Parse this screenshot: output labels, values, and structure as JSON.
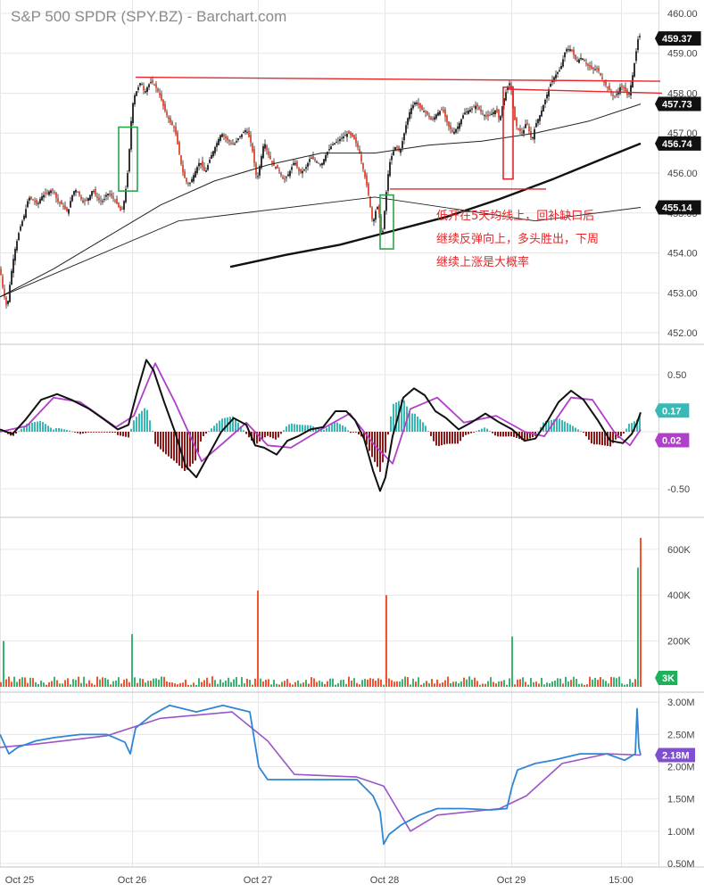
{
  "header": {
    "title": "S&P 500 SPDR (SPY.BZ) - Barchart.com"
  },
  "annotation": {
    "lines": [
      "低开在5天均线上，回补缺口后",
      "继续反弹向上，多头胜出，下周",
      "继续上涨是大概率"
    ]
  },
  "x_axis": {
    "ticks": [
      "Oct 25",
      "Oct 26",
      "Oct 27",
      "Oct 28",
      "Oct 29",
      "15:00"
    ]
  },
  "colors": {
    "up": "#3aa757",
    "down": "#e8452c",
    "annotation": "#e8262a",
    "macd_line": "#111111",
    "macd_signal": "#b03fc9",
    "hist_pos": "#38b9b5",
    "hist_neg": "#8b1a1a",
    "volume_up": "#3cb371",
    "volume_down": "#f4542f",
    "obv": "#2f86d6",
    "obv_avg": "#9a55c9",
    "box_green": "#2aa54a",
    "box_red": "#e0282c"
  },
  "chart_data": [
    {
      "type": "candlestick",
      "name": "price",
      "ylim": [
        451.8,
        460.2
      ],
      "y_ticks": [
        "452.00",
        "453.00",
        "454.00",
        "455.00",
        "456.00",
        "457.00",
        "458.00",
        "459.00",
        "460.00"
      ],
      "last_price_labels": [
        "459.37",
        "457.73",
        "456.74",
        "455.14"
      ],
      "overlays": [
        "moving average (thin black)",
        "moving average (thick black)",
        "horizontal support/resistance lines (red)"
      ],
      "price_path": [
        [
          0,
          453.6
        ],
        [
          4,
          453.0
        ],
        [
          8,
          452.6
        ],
        [
          12,
          453.4
        ],
        [
          16,
          454.0
        ],
        [
          22,
          454.6
        ],
        [
          28,
          455.0
        ],
        [
          32,
          455.4
        ],
        [
          38,
          455.3
        ],
        [
          42,
          455.2
        ],
        [
          46,
          455.4
        ],
        [
          52,
          455.5
        ],
        [
          60,
          455.6
        ],
        [
          64,
          455.3
        ],
        [
          70,
          455.2
        ],
        [
          76,
          455.0
        ],
        [
          80,
          455.4
        ],
        [
          84,
          455.6
        ],
        [
          88,
          455.5
        ],
        [
          92,
          455.3
        ],
        [
          96,
          455.3
        ],
        [
          100,
          455.4
        ],
        [
          104,
          455.6
        ],
        [
          108,
          455.4
        ],
        [
          112,
          455.3
        ],
        [
          116,
          455.3
        ],
        [
          120,
          455.5
        ],
        [
          126,
          455.4
        ],
        [
          132,
          455.2
        ],
        [
          136,
          455.0
        ],
        [
          140,
          455.4
        ],
        [
          144,
          456.2
        ],
        [
          146,
          457.0
        ],
        [
          148,
          457.6
        ],
        [
          150,
          457.9
        ],
        [
          154,
          458.1
        ],
        [
          158,
          458.3
        ],
        [
          162,
          458.0
        ],
        [
          166,
          458.2
        ],
        [
          170,
          458.3
        ],
        [
          176,
          458.1
        ],
        [
          180,
          457.9
        ],
        [
          184,
          457.6
        ],
        [
          190,
          457.3
        ],
        [
          196,
          457.1
        ],
        [
          200,
          456.6
        ],
        [
          204,
          456.1
        ],
        [
          208,
          455.8
        ],
        [
          212,
          455.7
        ],
        [
          218,
          456.0
        ],
        [
          224,
          456.3
        ],
        [
          230,
          456.0
        ],
        [
          236,
          456.4
        ],
        [
          242,
          456.7
        ],
        [
          248,
          457.0
        ],
        [
          256,
          456.8
        ],
        [
          262,
          456.7
        ],
        [
          268,
          456.9
        ],
        [
          272,
          457.0
        ],
        [
          276,
          457.1
        ],
        [
          282,
          456.7
        ],
        [
          288,
          455.8
        ],
        [
          292,
          456.3
        ],
        [
          296,
          456.8
        ],
        [
          300,
          456.5
        ],
        [
          306,
          456.2
        ],
        [
          312,
          456.1
        ],
        [
          318,
          455.8
        ],
        [
          324,
          456.0
        ],
        [
          330,
          456.3
        ],
        [
          336,
          456.0
        ],
        [
          342,
          456.1
        ],
        [
          348,
          456.4
        ],
        [
          354,
          456.3
        ],
        [
          360,
          456.2
        ],
        [
          366,
          456.5
        ],
        [
          372,
          456.7
        ],
        [
          378,
          456.8
        ],
        [
          384,
          456.9
        ],
        [
          390,
          457.0
        ],
        [
          396,
          456.9
        ],
        [
          402,
          456.6
        ],
        [
          408,
          456.0
        ],
        [
          412,
          455.6
        ],
        [
          416,
          455.0
        ],
        [
          418,
          454.7
        ],
        [
          420,
          455.0
        ],
        [
          424,
          455.2
        ],
        [
          428,
          454.3
        ],
        [
          432,
          455.3
        ],
        [
          436,
          456.2
        ],
        [
          440,
          456.5
        ],
        [
          444,
          456.7
        ],
        [
          448,
          456.5
        ],
        [
          452,
          456.9
        ],
        [
          456,
          457.3
        ],
        [
          460,
          457.6
        ],
        [
          466,
          457.8
        ],
        [
          472,
          457.6
        ],
        [
          478,
          457.5
        ],
        [
          484,
          457.3
        ],
        [
          490,
          457.5
        ],
        [
          496,
          457.6
        ],
        [
          502,
          457.2
        ],
        [
          508,
          457.0
        ],
        [
          514,
          457.2
        ],
        [
          520,
          457.5
        ],
        [
          528,
          457.6
        ],
        [
          534,
          457.7
        ],
        [
          540,
          457.5
        ],
        [
          546,
          457.4
        ],
        [
          552,
          457.5
        ],
        [
          556,
          457.6
        ],
        [
          560,
          457.3
        ],
        [
          564,
          457.8
        ],
        [
          568,
          458.1
        ],
        [
          572,
          458.3
        ],
        [
          576,
          457.4
        ],
        [
          580,
          457.1
        ],
        [
          586,
          457.0
        ],
        [
          590,
          457.3
        ],
        [
          596,
          456.8
        ],
        [
          600,
          457.2
        ],
        [
          606,
          457.5
        ],
        [
          612,
          457.9
        ],
        [
          618,
          458.3
        ],
        [
          624,
          458.5
        ],
        [
          628,
          458.6
        ],
        [
          634,
          459.1
        ],
        [
          640,
          459.1
        ],
        [
          646,
          458.8
        ],
        [
          652,
          458.9
        ],
        [
          658,
          458.7
        ],
        [
          664,
          458.6
        ],
        [
          670,
          458.6
        ],
        [
          676,
          458.3
        ],
        [
          682,
          458.1
        ],
        [
          688,
          457.9
        ],
        [
          692,
          458.0
        ],
        [
          696,
          458.2
        ],
        [
          700,
          458.1
        ],
        [
          704,
          457.9
        ],
        [
          708,
          458.3
        ],
        [
          712,
          458.9
        ],
        [
          716,
          459.5
        ],
        [
          718,
          459.37
        ]
      ],
      "ma_thin": [
        [
          0,
          452.9
        ],
        [
          60,
          453.6
        ],
        [
          120,
          454.4
        ],
        [
          180,
          455.2
        ],
        [
          240,
          455.8
        ],
        [
          300,
          456.2
        ],
        [
          360,
          456.5
        ],
        [
          420,
          456.5
        ],
        [
          480,
          456.7
        ],
        [
          540,
          456.8
        ],
        [
          600,
          457.0
        ],
        [
          660,
          457.3
        ],
        [
          718,
          457.73
        ]
      ],
      "ma_thick": [
        [
          258,
          453.65
        ],
        [
          320,
          453.95
        ],
        [
          380,
          454.2
        ],
        [
          440,
          454.55
        ],
        [
          500,
          454.9
        ],
        [
          560,
          455.35
        ],
        [
          620,
          455.85
        ],
        [
          680,
          456.4
        ],
        [
          718,
          456.74
        ]
      ],
      "ma_lower": [
        [
          0,
          452.9
        ],
        [
          200,
          454.8
        ],
        [
          420,
          455.4
        ],
        [
          600,
          454.8
        ],
        [
          718,
          455.14
        ]
      ],
      "red_lines": [
        [
          [
            152,
            458.4
          ],
          [
            740,
            458.3
          ]
        ],
        [
          [
            570,
            458.1
          ],
          [
            742,
            458.0
          ]
        ],
        [
          [
            437,
            455.6
          ],
          [
            612,
            455.6
          ]
        ]
      ],
      "boxes": [
        {
          "color": "green",
          "x0": 133,
          "x1": 154,
          "y_top": 457.15,
          "y_bottom": 455.55
        },
        {
          "color": "green",
          "x0": 426,
          "x1": 441,
          "y_top": 455.45,
          "y_bottom": 454.1
        },
        {
          "color": "red",
          "x0": 564,
          "x1": 575,
          "y_top": 458.15,
          "y_bottom": 455.85
        }
      ]
    },
    {
      "type": "line",
      "name": "macd",
      "ylim": [
        -0.72,
        0.72
      ],
      "y_ticks": [
        "0.50",
        "-0.50"
      ],
      "last_value_labels": [
        "0.17",
        "0.02"
      ],
      "macd": [
        [
          0,
          0.02
        ],
        [
          14,
          -0.02
        ],
        [
          28,
          0.1
        ],
        [
          46,
          0.28
        ],
        [
          64,
          0.33
        ],
        [
          80,
          0.28
        ],
        [
          100,
          0.2
        ],
        [
          118,
          0.1
        ],
        [
          132,
          0.02
        ],
        [
          144,
          0.06
        ],
        [
          154,
          0.36
        ],
        [
          164,
          0.63
        ],
        [
          172,
          0.54
        ],
        [
          184,
          0.26
        ],
        [
          196,
          0.0
        ],
        [
          208,
          -0.3
        ],
        [
          220,
          -0.4
        ],
        [
          234,
          -0.2
        ],
        [
          248,
          0.0
        ],
        [
          262,
          0.12
        ],
        [
          276,
          0.06
        ],
        [
          286,
          -0.12
        ],
        [
          296,
          -0.14
        ],
        [
          310,
          -0.2
        ],
        [
          322,
          -0.08
        ],
        [
          334,
          -0.04
        ],
        [
          348,
          0.02
        ],
        [
          362,
          0.04
        ],
        [
          376,
          0.18
        ],
        [
          388,
          0.18
        ],
        [
          398,
          0.1
        ],
        [
          408,
          -0.06
        ],
        [
          418,
          -0.34
        ],
        [
          426,
          -0.52
        ],
        [
          432,
          -0.4
        ],
        [
          440,
          -0.04
        ],
        [
          452,
          0.3
        ],
        [
          464,
          0.38
        ],
        [
          476,
          0.32
        ],
        [
          488,
          0.18
        ],
        [
          500,
          0.12
        ],
        [
          514,
          0.02
        ],
        [
          528,
          0.08
        ],
        [
          544,
          0.16
        ],
        [
          560,
          0.08
        ],
        [
          574,
          0.02
        ],
        [
          588,
          -0.08
        ],
        [
          600,
          -0.06
        ],
        [
          614,
          0.1
        ],
        [
          626,
          0.26
        ],
        [
          640,
          0.36
        ],
        [
          654,
          0.28
        ],
        [
          670,
          0.1
        ],
        [
          684,
          -0.08
        ],
        [
          698,
          -0.1
        ],
        [
          708,
          -0.02
        ],
        [
          714,
          0.08
        ],
        [
          718,
          0.17
        ]
      ],
      "signal": [
        [
          0,
          0.0
        ],
        [
          30,
          0.05
        ],
        [
          60,
          0.3
        ],
        [
          90,
          0.26
        ],
        [
          130,
          0.04
        ],
        [
          150,
          0.14
        ],
        [
          174,
          0.6
        ],
        [
          196,
          0.26
        ],
        [
          226,
          -0.26
        ],
        [
          250,
          -0.1
        ],
        [
          276,
          0.08
        ],
        [
          300,
          -0.12
        ],
        [
          326,
          -0.14
        ],
        [
          360,
          0.02
        ],
        [
          392,
          0.16
        ],
        [
          420,
          -0.12
        ],
        [
          440,
          -0.28
        ],
        [
          460,
          0.2
        ],
        [
          490,
          0.3
        ],
        [
          520,
          0.08
        ],
        [
          556,
          0.14
        ],
        [
          588,
          0.0
        ],
        [
          610,
          -0.04
        ],
        [
          640,
          0.3
        ],
        [
          664,
          0.28
        ],
        [
          690,
          -0.02
        ],
        [
          706,
          -0.12
        ],
        [
          718,
          0.02
        ]
      ]
    },
    {
      "type": "bar",
      "name": "volume",
      "ylim": [
        0,
        720000
      ],
      "y_ticks": [
        "600K",
        "400K",
        "200K"
      ],
      "last_value_label": "3K",
      "spikes": [
        [
          2,
          200000,
          "up"
        ],
        [
          146,
          230000,
          "up"
        ],
        [
          288,
          420000,
          "down"
        ],
        [
          431,
          400000,
          "down"
        ],
        [
          573,
          220000,
          "up"
        ],
        [
          715,
          520000,
          "up"
        ],
        [
          717,
          650000,
          "down"
        ]
      ]
    },
    {
      "type": "line",
      "name": "obv",
      "ylim": [
        500000,
        3100000
      ],
      "y_ticks": [
        "3.00M",
        "2.50M",
        "2.00M",
        "1.50M",
        "1.00M",
        "0.50M"
      ],
      "last_value_label": "2.18M",
      "obv": [
        [
          0,
          2.5
        ],
        [
          10,
          2.2
        ],
        [
          20,
          2.3
        ],
        [
          40,
          2.4
        ],
        [
          60,
          2.45
        ],
        [
          90,
          2.5
        ],
        [
          120,
          2.5
        ],
        [
          140,
          2.38
        ],
        [
          146,
          2.2
        ],
        [
          152,
          2.6
        ],
        [
          170,
          2.8
        ],
        [
          190,
          2.95
        ],
        [
          220,
          2.85
        ],
        [
          250,
          2.95
        ],
        [
          280,
          2.85
        ],
        [
          290,
          2.0
        ],
        [
          300,
          1.8
        ],
        [
          330,
          1.8
        ],
        [
          360,
          1.8
        ],
        [
          400,
          1.8
        ],
        [
          418,
          1.55
        ],
        [
          426,
          1.3
        ],
        [
          430,
          0.8
        ],
        [
          436,
          0.95
        ],
        [
          450,
          1.1
        ],
        [
          470,
          1.25
        ],
        [
          490,
          1.35
        ],
        [
          520,
          1.35
        ],
        [
          550,
          1.33
        ],
        [
          568,
          1.35
        ],
        [
          574,
          1.7
        ],
        [
          580,
          1.95
        ],
        [
          600,
          2.05
        ],
        [
          620,
          2.1
        ],
        [
          650,
          2.2
        ],
        [
          680,
          2.2
        ],
        [
          700,
          2.1
        ],
        [
          712,
          2.2
        ],
        [
          714,
          2.9
        ],
        [
          716,
          2.3
        ],
        [
          718,
          2.18
        ]
      ],
      "obv_avg": [
        [
          0,
          2.3
        ],
        [
          40,
          2.35
        ],
        [
          120,
          2.48
        ],
        [
          180,
          2.75
        ],
        [
          260,
          2.85
        ],
        [
          300,
          2.4
        ],
        [
          330,
          1.88
        ],
        [
          400,
          1.84
        ],
        [
          430,
          1.7
        ],
        [
          460,
          1.0
        ],
        [
          490,
          1.25
        ],
        [
          560,
          1.35
        ],
        [
          590,
          1.55
        ],
        [
          630,
          2.05
        ],
        [
          680,
          2.2
        ],
        [
          718,
          2.18
        ]
      ]
    }
  ]
}
